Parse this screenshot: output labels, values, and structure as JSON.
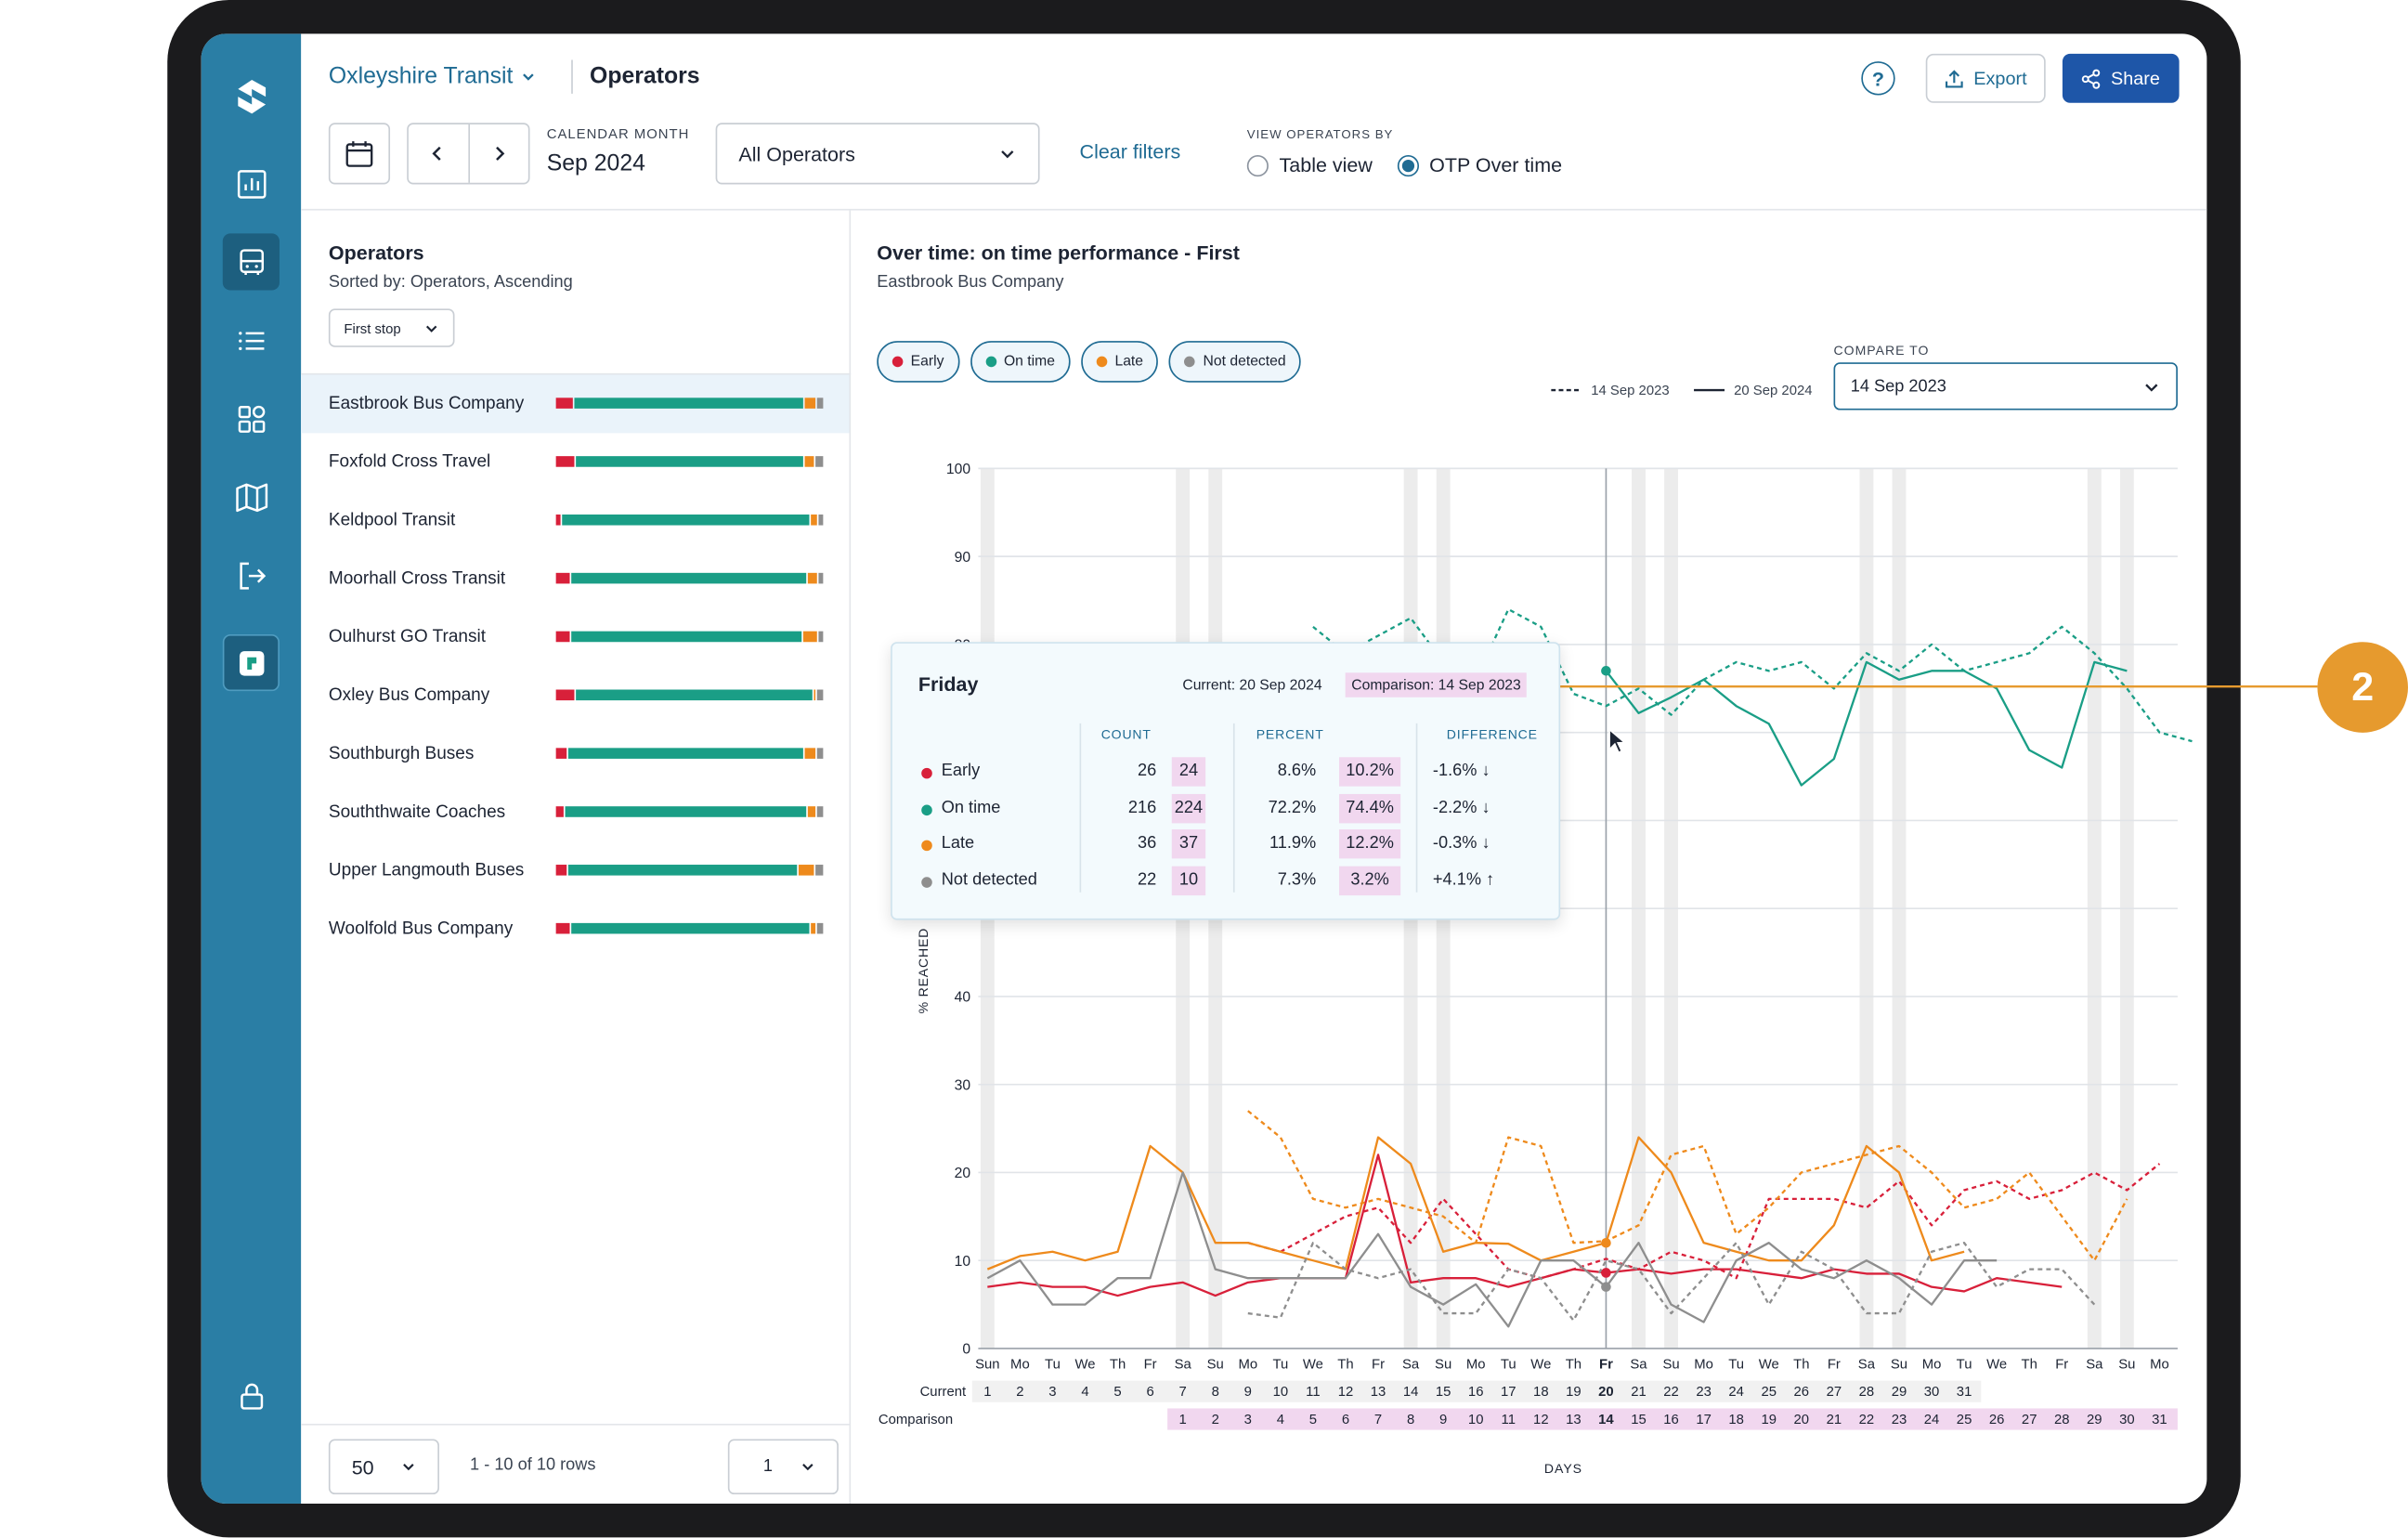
{
  "header": {
    "app_name": "Oxleyshire Transit",
    "page_title": "Operators",
    "help_icon": "?",
    "export_label": "Export",
    "share_label": "Share"
  },
  "filters": {
    "calendar_label": "CALENDAR MONTH",
    "calendar_value": "Sep 2024",
    "operator_select": "All Operators",
    "clear_label": "Clear filters",
    "view_label": "VIEW OPERATORS BY",
    "view_options": [
      "Table view",
      "OTP Over time"
    ],
    "view_selected": "OTP Over time"
  },
  "operators_panel": {
    "title": "Operators",
    "sorted_by": "Sorted by: Operators, Ascending",
    "stop_filter": "First stop",
    "rows": [
      {
        "name": "Eastbrook Bus Company",
        "selected": true
      },
      {
        "name": "Foxfold Cross Travel"
      },
      {
        "name": "Keldpool Transit"
      },
      {
        "name": "Moorhall Cross Transit"
      },
      {
        "name": "Oulhurst GO Transit"
      },
      {
        "name": "Oxley Bus Company"
      },
      {
        "name": "Southburgh Buses"
      },
      {
        "name": "Souththwaite Coaches"
      },
      {
        "name": "Upper Langmouth Buses"
      },
      {
        "name": "Woolfold Bus Company"
      }
    ],
    "page_size": "50",
    "rows_info": "1 - 10 of 10 rows",
    "page_number": "1"
  },
  "chart_panel": {
    "title": "Over time: on time performance - First",
    "subtitle": "Eastbrook Bus Company",
    "legend": [
      "Early",
      "On time",
      "Late",
      "Not detected"
    ],
    "line_key": {
      "dashed": "14 Sep 2023",
      "solid": "20 Sep 2024"
    },
    "compare_label": "COMPARE TO",
    "compare_value": "14 Sep 2023",
    "ylabel": "% REACHED",
    "xlabel": "DAYS",
    "current_row_label": "Current",
    "comparison_row_label": "Comparison"
  },
  "tooltip": {
    "day": "Friday",
    "current": "Current: 20 Sep 2024",
    "comparison": "Comparison: 14 Sep 2023",
    "headers": [
      "COUNT",
      "PERCENT",
      "DIFFERENCE"
    ],
    "rows": [
      {
        "label": "Early",
        "count": "26",
        "count_cmp": "24",
        "pct": "8.6%",
        "pct_cmp": "10.2%",
        "diff": "-1.6% ↓"
      },
      {
        "label": "On time",
        "count": "216",
        "count_cmp": "224",
        "pct": "72.2%",
        "pct_cmp": "74.4%",
        "diff": "-2.2% ↓"
      },
      {
        "label": "Late",
        "count": "36",
        "count_cmp": "37",
        "pct": "11.9%",
        "pct_cmp": "12.2%",
        "diff": "-0.3% ↓"
      },
      {
        "label": "Not detected",
        "count": "22",
        "count_cmp": "10",
        "pct": "7.3%",
        "pct_cmp": "3.2%",
        "diff": "+4.1% ↑"
      }
    ]
  },
  "callout": {
    "label": "2"
  },
  "colors": {
    "early": "#d8203a",
    "on_time": "#1a9e86",
    "late": "#ee8a1c",
    "not_detected": "#8e8e8e",
    "accent": "#1f6b93",
    "rail": "#2a7ea5"
  },
  "chart_data": {
    "type": "line",
    "ylim": [
      0,
      100
    ],
    "yticks": [
      0,
      10,
      20,
      30,
      40,
      50,
      60,
      70,
      80,
      90,
      100
    ],
    "weekdays": [
      "Sun",
      "Mo",
      "Tu",
      "We",
      "Th",
      "Fr",
      "Sa",
      "Su",
      "Mo",
      "Tu",
      "We",
      "Th",
      "Fr",
      "Sa",
      "Su",
      "Mo",
      "Tu",
      "We",
      "Th",
      "Fr",
      "Sa",
      "Su",
      "Mo",
      "Tu",
      "We",
      "Th",
      "Fr",
      "Sa",
      "Su",
      "Mo",
      "Tu",
      "We",
      "Th",
      "Fr",
      "Sa",
      "Su",
      "Mo"
    ],
    "highlight_weekday": "Fr",
    "current_days": [
      1,
      2,
      3,
      4,
      5,
      6,
      7,
      8,
      9,
      10,
      11,
      12,
      13,
      14,
      15,
      16,
      17,
      18,
      19,
      20,
      21,
      22,
      23,
      24,
      25,
      26,
      27,
      28,
      29,
      30,
      31
    ],
    "highlight_current_day": 20,
    "comparison_days": [
      1,
      2,
      3,
      4,
      5,
      6,
      7,
      8,
      9,
      10,
      11,
      12,
      13,
      14,
      15,
      16,
      17,
      18,
      19,
      20,
      21,
      22,
      23,
      24,
      25,
      26,
      27,
      28,
      29,
      30,
      31
    ],
    "highlight_comparison_day": 14,
    "series": [
      {
        "name": "On time",
        "period": "20 Sep 2024",
        "style": "solid",
        "x_start": 19,
        "values": [
          77,
          72.2,
          74,
          76,
          73,
          71,
          64,
          67,
          78,
          76,
          77,
          77,
          75,
          68,
          66,
          78,
          77
        ]
      },
      {
        "name": "On time",
        "period": "14 Sep 2023",
        "style": "dashed",
        "x_start": 10,
        "values": [
          82,
          79,
          81,
          83,
          78,
          76,
          84,
          82,
          74.4,
          73,
          75,
          72,
          76,
          78,
          77,
          78,
          75,
          79,
          77,
          80,
          77,
          78,
          79,
          82,
          79,
          75,
          70,
          69
        ]
      },
      {
        "name": "Early",
        "period": "20 Sep 2024",
        "style": "solid",
        "x_start": 0,
        "values": [
          7,
          7.5,
          7,
          7,
          6,
          7,
          7.5,
          6,
          7.5,
          8,
          8,
          8,
          22,
          7.5,
          8,
          8,
          7,
          8,
          9,
          8.6,
          9,
          8.5,
          9,
          9,
          8.5,
          8,
          9,
          8.5,
          8.5,
          7,
          6.5,
          8,
          7.5,
          7
        ]
      },
      {
        "name": "Early",
        "period": "14 Sep 2023",
        "style": "dashed",
        "x_start": 8,
        "values": [
          12,
          11,
          13,
          15,
          16,
          12,
          17,
          13,
          9,
          8,
          9,
          10.2,
          9,
          11,
          10,
          8,
          17,
          17,
          17,
          16,
          19,
          14,
          18,
          19,
          17,
          18,
          20,
          18,
          21
        ]
      },
      {
        "name": "Late",
        "period": "20 Sep 2024",
        "style": "solid",
        "x_start": 0,
        "values": [
          9,
          10.5,
          11,
          10,
          11,
          23,
          20,
          12,
          12,
          11,
          10,
          9,
          24,
          21,
          11,
          12,
          11.9,
          10,
          11,
          12,
          24,
          20,
          12,
          11,
          10,
          10,
          14,
          23,
          20,
          10,
          11
        ]
      },
      {
        "name": "Late",
        "period": "14 Sep 2023",
        "style": "dashed",
        "x_start": 8,
        "values": [
          27,
          24,
          17,
          16,
          17,
          16,
          15,
          12,
          24,
          23,
          12,
          12.2,
          14,
          22,
          23,
          13,
          16,
          20,
          21,
          22,
          23,
          20,
          16,
          17,
          20,
          15,
          10,
          17
        ]
      },
      {
        "name": "Not detected",
        "period": "20 Sep 2024",
        "style": "solid",
        "x_start": 0,
        "values": [
          8,
          10,
          5,
          5,
          8,
          8,
          20,
          9,
          8,
          8,
          8,
          8,
          13,
          7,
          5,
          7.3,
          2.5,
          10,
          10,
          7,
          12,
          5,
          3,
          10,
          12,
          9,
          8,
          10,
          8,
          5,
          10,
          10
        ]
      },
      {
        "name": "Not detected",
        "period": "14 Sep 2023",
        "style": "dashed",
        "x_start": 8,
        "values": [
          4,
          3.5,
          12,
          9,
          8,
          9,
          4,
          4,
          9,
          8,
          3.2,
          10,
          9,
          4,
          8,
          12,
          5,
          11,
          9,
          4,
          4,
          11,
          12,
          7,
          9,
          9,
          5
        ]
      }
    ]
  }
}
